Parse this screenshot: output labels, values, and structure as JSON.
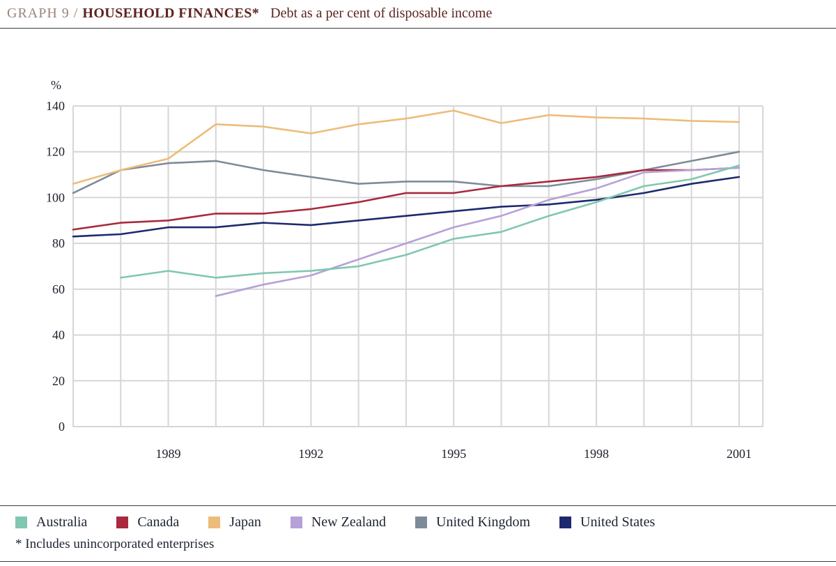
{
  "header": {
    "graph_label": "GRAPH 9 /",
    "title": "HOUSEHOLD FINANCES*",
    "subtitle": "Debt as a per cent of disposable income"
  },
  "footnote": "* Includes unincorporated enterprises",
  "chart_data": {
    "type": "line",
    "title": "Household finances: debt as a per cent of disposable income",
    "unit_label": "%",
    "ylim": [
      0,
      140
    ],
    "yticks": [
      0,
      20,
      40,
      60,
      80,
      100,
      120,
      140
    ],
    "xticks": [
      1989,
      1992,
      1995,
      1998,
      2001
    ],
    "x_range": [
      1987,
      2001
    ],
    "frequency": "annual",
    "grid": true,
    "legend_position": "bottom",
    "gridline_color": "#d6d6d6",
    "series": [
      {
        "name": "Australia",
        "color": "#7fc7b1",
        "start_year": 1988,
        "values": [
          65,
          68,
          65,
          67,
          68,
          70,
          75,
          82,
          85,
          92,
          98,
          105,
          108,
          114
        ]
      },
      {
        "name": "Canada",
        "color": "#a82a3c",
        "start_year": 1987,
        "values": [
          86,
          89,
          90,
          93,
          93,
          95,
          98,
          102,
          102,
          105,
          107,
          109,
          112,
          112,
          113
        ]
      },
      {
        "name": "Japan",
        "color": "#edbc7a",
        "start_year": 1987,
        "values": [
          106,
          112,
          117,
          132,
          131,
          128,
          132,
          134.5,
          138,
          132.5,
          136,
          135,
          134.5,
          133.5,
          133
        ]
      },
      {
        "name": "New Zealand",
        "color": "#b6a1d9",
        "start_year": 1990,
        "values": [
          57,
          62,
          66,
          73,
          80,
          87,
          92,
          99,
          104,
          111,
          112,
          113
        ]
      },
      {
        "name": "United Kingdom",
        "color": "#7d8b99",
        "start_year": 1987,
        "values": [
          102,
          112,
          115,
          116,
          112,
          109,
          106,
          107,
          107,
          105,
          105,
          108,
          112,
          116,
          120
        ]
      },
      {
        "name": "United States",
        "color": "#1d2a6e",
        "start_year": 1987,
        "values": [
          83,
          84,
          87,
          87,
          89,
          88,
          90,
          92,
          94,
          96,
          97,
          99,
          102,
          106,
          109
        ]
      }
    ]
  }
}
